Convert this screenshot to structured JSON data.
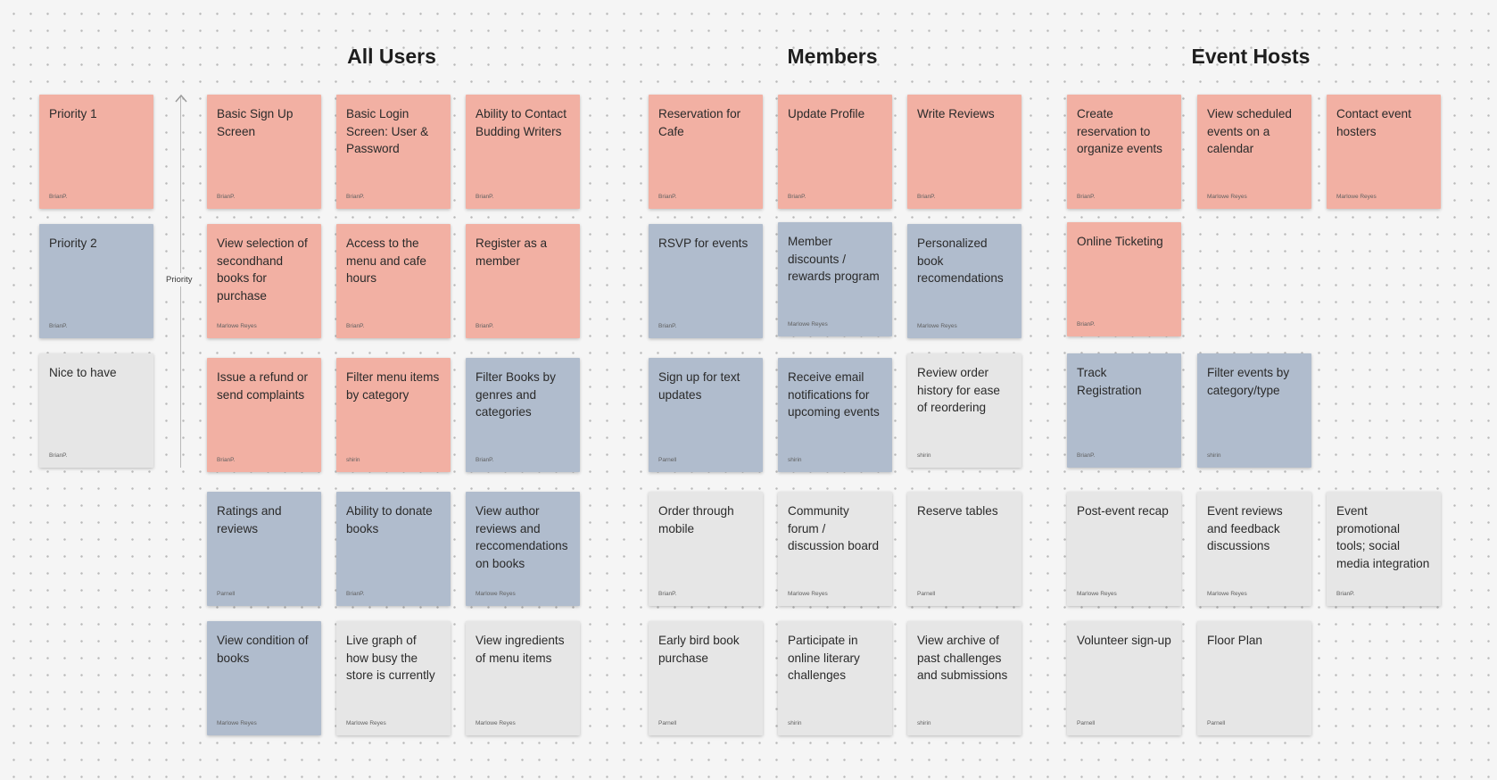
{
  "headings": {
    "all_users": "All Users",
    "members": "Members",
    "event_hosts": "Event Hosts"
  },
  "axis": {
    "label": "Priority"
  },
  "colors": {
    "priority_1": "#f2b0a3",
    "priority_2": "#b0bccd",
    "nice_to_have": "#e6e6e6",
    "background": "#f5f5f5"
  },
  "legend": [
    {
      "text": "Priority 1",
      "author": "BrianP.",
      "type": "p1"
    },
    {
      "text": "Priority 2",
      "author": "BrianP.",
      "type": "p2"
    },
    {
      "text": "Nice to have",
      "author": "BrianP.",
      "type": "nth"
    }
  ],
  "groups": {
    "all_users": {
      "notes": [
        {
          "text": "Basic Sign Up Screen",
          "author": "BrianP.",
          "type": "p1"
        },
        {
          "text": "Basic Login Screen: User & Password",
          "author": "BrianP.",
          "type": "p1"
        },
        {
          "text": "Ability to Contact Budding Writers",
          "author": "BrianP.",
          "type": "p1"
        },
        {
          "text": "View selection of secondhand books for purchase",
          "author": "Marlowe Reyes",
          "type": "p1"
        },
        {
          "text": "Access to the menu and cafe hours",
          "author": "BrianP.",
          "type": "p1"
        },
        {
          "text": "Register as a member",
          "author": "BrianP.",
          "type": "p1"
        },
        {
          "text": "Issue a refund or send complaints",
          "author": "BrianP.",
          "type": "p1"
        },
        {
          "text": "Filter menu items by category",
          "author": "shirin",
          "type": "p1"
        },
        {
          "text": "Filter Books by genres and categories",
          "author": "BrianP.",
          "type": "p2"
        },
        {
          "text": "Ratings and reviews",
          "author": "Parnell",
          "type": "p2"
        },
        {
          "text": "Ability to donate books",
          "author": "BrianP.",
          "type": "p2"
        },
        {
          "text": "View author reviews and reccomendations on books",
          "author": "Marlowe Reyes",
          "type": "p2"
        },
        {
          "text": "View condition of books",
          "author": "Marlowe Reyes",
          "type": "p2"
        },
        {
          "text": "Live graph of how busy the store is currently",
          "author": "Marlowe Reyes",
          "type": "nth"
        },
        {
          "text": "View ingredients of menu items",
          "author": "Marlowe Reyes",
          "type": "nth"
        }
      ]
    },
    "members": {
      "notes": [
        {
          "text": "Reservation for Cafe",
          "author": "BrianP.",
          "type": "p1"
        },
        {
          "text": "Update Profile",
          "author": "BrianP.",
          "type": "p1"
        },
        {
          "text": "Write Reviews",
          "author": "BrianP.",
          "type": "p1"
        },
        {
          "text": "RSVP for events",
          "author": "BrianP.",
          "type": "p2"
        },
        {
          "text": "Member discounts / rewards program",
          "author": "Marlowe Reyes",
          "type": "p2"
        },
        {
          "text": "Personalized book recomendations",
          "author": "Marlowe Reyes",
          "type": "p2"
        },
        {
          "text": "Sign up for text updates",
          "author": "Parnell",
          "type": "p2"
        },
        {
          "text": "Receive email notifications for upcoming events",
          "author": "shirin",
          "type": "p2"
        },
        {
          "text": "Review order history for ease of reordering",
          "author": "shirin",
          "type": "nth"
        },
        {
          "text": "Order through mobile",
          "author": "BrianP.",
          "type": "nth"
        },
        {
          "text": "Community forum / discussion board",
          "author": "Marlowe Reyes",
          "type": "nth"
        },
        {
          "text": "Reserve tables",
          "author": "Parnell",
          "type": "nth"
        },
        {
          "text": "Early bird book purchase",
          "author": "Parnell",
          "type": "nth"
        },
        {
          "text": "Participate in online literary challenges",
          "author": "shirin",
          "type": "nth"
        },
        {
          "text": "View archive of past challenges and submissions",
          "author": "shirin",
          "type": "nth"
        }
      ]
    },
    "event_hosts": {
      "notes": [
        {
          "text": "Create reservation to organize events",
          "author": "BrianP.",
          "type": "p1"
        },
        {
          "text": "View scheduled events on a calendar",
          "author": "Marlowe Reyes",
          "type": "p1"
        },
        {
          "text": "Contact event hosters",
          "author": "Marlowe Reyes",
          "type": "p1"
        },
        {
          "text": "Online Ticketing",
          "author": "BrianP.",
          "type": "p1"
        },
        {
          "text": "Track Registration",
          "author": "BrianP.",
          "type": "p2"
        },
        {
          "text": "Filter events by category/type",
          "author": "shirin",
          "type": "p2"
        },
        {
          "text": "Post-event recap",
          "author": "Marlowe Reyes",
          "type": "nth"
        },
        {
          "text": "Event reviews and feedback discussions",
          "author": "Marlowe Reyes",
          "type": "nth"
        },
        {
          "text": "Event promotional tools; social media integration",
          "author": "BrianP.",
          "type": "nth"
        },
        {
          "text": "Volunteer sign-up",
          "author": "Parnell",
          "type": "nth"
        },
        {
          "text": "Floor Plan",
          "author": "Parnell",
          "type": "nth"
        }
      ]
    }
  }
}
